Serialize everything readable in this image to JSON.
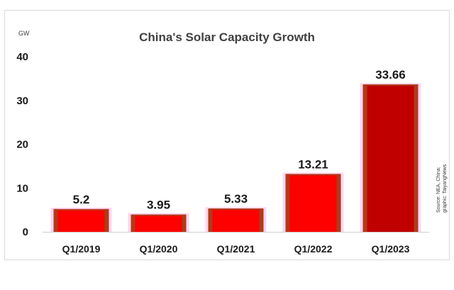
{
  "chart_data": {
    "type": "bar",
    "title": "China's Solar Capacity Growth",
    "unit_label": "GW",
    "categories": [
      "Q1/2019",
      "Q1/2020",
      "Q1/2021",
      "Q1/2022",
      "Q1/2023"
    ],
    "values": [
      5.2,
      3.95,
      5.33,
      13.21,
      33.66
    ],
    "value_labels": [
      "5.2",
      "3.95",
      "5.33",
      "13.21",
      "33.66"
    ],
    "yticks": [
      0,
      10,
      20,
      30,
      40
    ],
    "ylim": [
      0,
      40
    ],
    "xlabel": "",
    "ylabel": "GW",
    "grid": false,
    "legend": "none",
    "source": [
      "Source: NEA, China;",
      "graphic: TaiyangNews"
    ],
    "colors": {
      "bar_fill": "#ff0000",
      "bar_edge": "#b03a1a",
      "bar_last": "#c00000",
      "bar_halo": "#ffd6f2",
      "text": "#1a1a1a"
    }
  }
}
